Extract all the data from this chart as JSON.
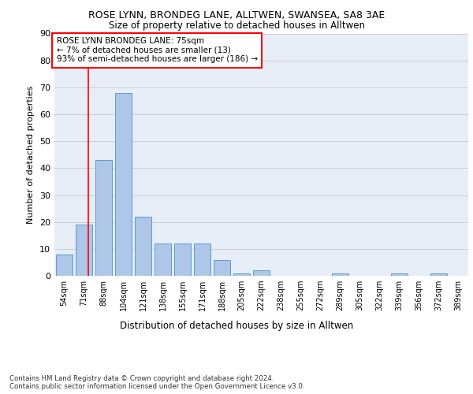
{
  "title1": "ROSE LYNN, BRONDEG LANE, ALLTWEN, SWANSEA, SA8 3AE",
  "title2": "Size of property relative to detached houses in Alltwen",
  "xlabel": "Distribution of detached houses by size in Alltwen",
  "ylabel": "Number of detached properties",
  "categories": [
    "54sqm",
    "71sqm",
    "88sqm",
    "104sqm",
    "121sqm",
    "138sqm",
    "155sqm",
    "171sqm",
    "188sqm",
    "205sqm",
    "222sqm",
    "238sqm",
    "255sqm",
    "272sqm",
    "289sqm",
    "305sqm",
    "322sqm",
    "339sqm",
    "356sqm",
    "372sqm",
    "389sqm"
  ],
  "values": [
    8,
    19,
    43,
    68,
    22,
    12,
    12,
    12,
    6,
    1,
    2,
    0,
    0,
    0,
    1,
    0,
    0,
    1,
    0,
    1,
    0
  ],
  "bar_color": "#aec6e8",
  "bar_edge_color": "#5b9bd5",
  "grid_color": "#cccccc",
  "background_color": "#e8eef7",
  "annotation_line1": "ROSE LYNN BRONDEG LANE: 75sqm",
  "annotation_line2": "← 7% of detached houses are smaller (13)",
  "annotation_line3": "93% of semi-detached houses are larger (186) →",
  "footer": "Contains HM Land Registry data © Crown copyright and database right 2024.\nContains public sector information licensed under the Open Government Licence v3.0.",
  "ylim": [
    0,
    90
  ],
  "yticks": [
    0,
    10,
    20,
    30,
    40,
    50,
    60,
    70,
    80,
    90
  ]
}
